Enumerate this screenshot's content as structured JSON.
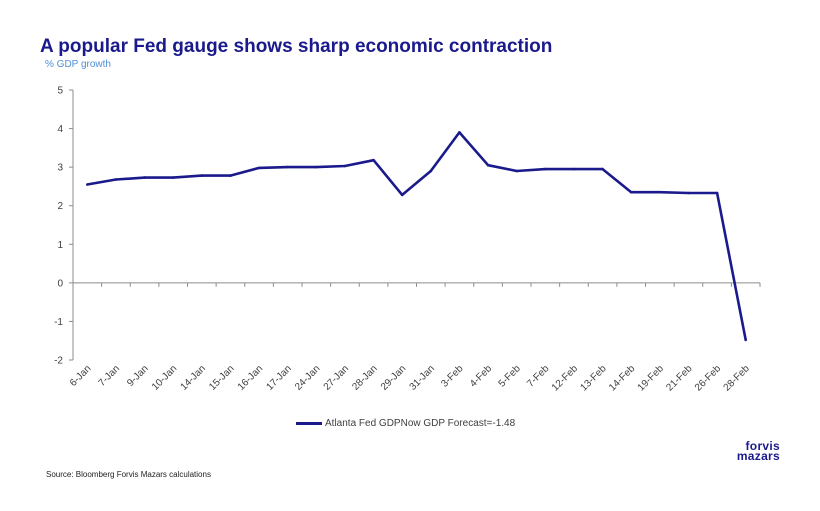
{
  "chart_data": {
    "type": "line",
    "title": "A popular Fed gauge shows sharp economic contraction",
    "subtitle": "% GDP growth",
    "categories": [
      "6-Jan",
      "7-Jan",
      "9-Jan",
      "10-Jan",
      "14-Jan",
      "15-Jan",
      "16-Jan",
      "17-Jan",
      "24-Jan",
      "27-Jan",
      "28-Jan",
      "29-Jan",
      "31-Jan",
      "3-Feb",
      "4-Feb",
      "5-Feb",
      "7-Feb",
      "12-Feb",
      "13-Feb",
      "14-Feb",
      "19-Feb",
      "21-Feb",
      "26-Feb",
      "28-Feb"
    ],
    "series": [
      {
        "name": "Atlanta Fed GDPNow GDP Forecast=-1.48",
        "color": "#1a1a8c",
        "values": [
          2.55,
          2.68,
          2.73,
          2.73,
          2.78,
          2.78,
          2.98,
          3.0,
          3.0,
          3.03,
          3.18,
          2.28,
          2.9,
          3.9,
          3.05,
          2.9,
          2.95,
          2.95,
          2.95,
          2.35,
          2.35,
          2.33,
          2.33,
          -1.48
        ]
      }
    ],
    "yticks": [
      "5",
      "4",
      "3",
      "2",
      "1",
      "0",
      "-1",
      "-2"
    ],
    "ylim": [
      -2,
      5
    ],
    "xlabel": "",
    "ylabel": "",
    "legend": "bottom-center",
    "grid": false
  },
  "source": "Source: Bloomberg Forvis Mazars calculations",
  "logo": {
    "line1": "forvis",
    "line2": "mazars"
  }
}
